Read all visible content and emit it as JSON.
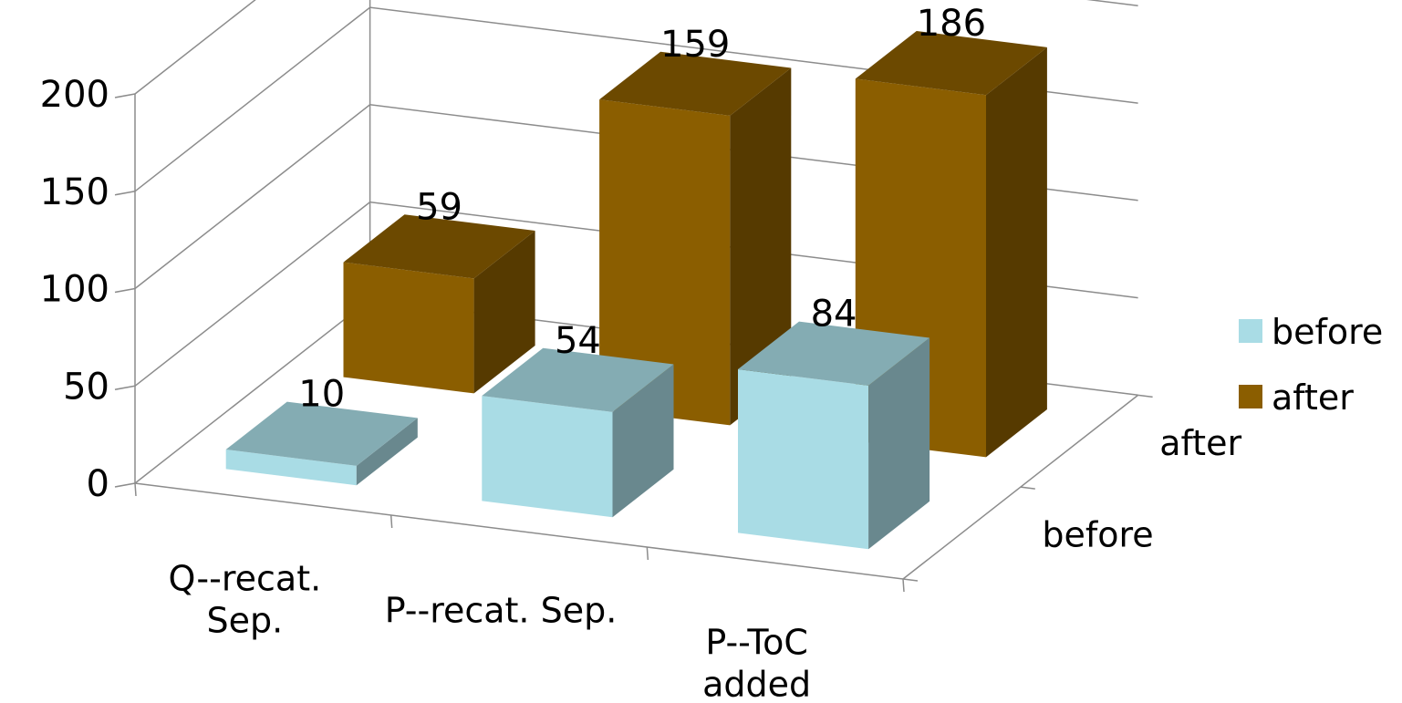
{
  "chart_data": {
    "type": "bar",
    "style": "3d-clustered-depth",
    "categories": [
      "Q--recat. Sep.",
      "P--recat. Sep.",
      "P--ToC added"
    ],
    "category_lines": [
      [
        "Q--recat.",
        "Sep."
      ],
      [
        "P--recat. Sep."
      ],
      [
        "P--ToC",
        "added"
      ]
    ],
    "series": [
      {
        "name": "before",
        "values": [
          10,
          54,
          84
        ],
        "color": "#A9DCE5"
      },
      {
        "name": "after",
        "values": [
          59,
          159,
          186
        ],
        "color": "#8B5E00"
      }
    ],
    "depth_labels": [
      "before",
      "after"
    ],
    "yticks": [
      "0",
      "50",
      "100",
      "150",
      "200"
    ],
    "ylim": [
      0,
      200
    ],
    "grid": true,
    "legend_position": "right",
    "title": "",
    "xlabel": "",
    "ylabel": ""
  }
}
